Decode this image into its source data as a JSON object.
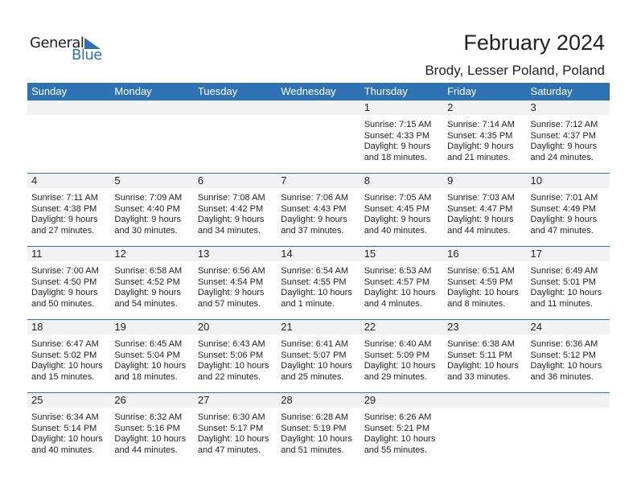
{
  "logo": {
    "text_general": "General",
    "text_blue": "Blue"
  },
  "header": {
    "title": "February 2024",
    "subtitle": "Brody, Lesser Poland, Poland"
  },
  "colors": {
    "accent": "#2e72b3",
    "band": "#f2f2f2"
  },
  "weekdays": [
    "Sunday",
    "Monday",
    "Tuesday",
    "Wednesday",
    "Thursday",
    "Friday",
    "Saturday"
  ],
  "weeks": [
    [
      null,
      null,
      null,
      null,
      {
        "day": "1",
        "sunrise": "Sunrise: 7:15 AM",
        "sunset": "Sunset: 4:33 PM",
        "daylight1": "Daylight: 9 hours",
        "daylight2": "and 18 minutes."
      },
      {
        "day": "2",
        "sunrise": "Sunrise: 7:14 AM",
        "sunset": "Sunset: 4:35 PM",
        "daylight1": "Daylight: 9 hours",
        "daylight2": "and 21 minutes."
      },
      {
        "day": "3",
        "sunrise": "Sunrise: 7:12 AM",
        "sunset": "Sunset: 4:37 PM",
        "daylight1": "Daylight: 9 hours",
        "daylight2": "and 24 minutes."
      }
    ],
    [
      {
        "day": "4",
        "sunrise": "Sunrise: 7:11 AM",
        "sunset": "Sunset: 4:38 PM",
        "daylight1": "Daylight: 9 hours",
        "daylight2": "and 27 minutes."
      },
      {
        "day": "5",
        "sunrise": "Sunrise: 7:09 AM",
        "sunset": "Sunset: 4:40 PM",
        "daylight1": "Daylight: 9 hours",
        "daylight2": "and 30 minutes."
      },
      {
        "day": "6",
        "sunrise": "Sunrise: 7:08 AM",
        "sunset": "Sunset: 4:42 PM",
        "daylight1": "Daylight: 9 hours",
        "daylight2": "and 34 minutes."
      },
      {
        "day": "7",
        "sunrise": "Sunrise: 7:06 AM",
        "sunset": "Sunset: 4:43 PM",
        "daylight1": "Daylight: 9 hours",
        "daylight2": "and 37 minutes."
      },
      {
        "day": "8",
        "sunrise": "Sunrise: 7:05 AM",
        "sunset": "Sunset: 4:45 PM",
        "daylight1": "Daylight: 9 hours",
        "daylight2": "and 40 minutes."
      },
      {
        "day": "9",
        "sunrise": "Sunrise: 7:03 AM",
        "sunset": "Sunset: 4:47 PM",
        "daylight1": "Daylight: 9 hours",
        "daylight2": "and 44 minutes."
      },
      {
        "day": "10",
        "sunrise": "Sunrise: 7:01 AM",
        "sunset": "Sunset: 4:49 PM",
        "daylight1": "Daylight: 9 hours",
        "daylight2": "and 47 minutes."
      }
    ],
    [
      {
        "day": "11",
        "sunrise": "Sunrise: 7:00 AM",
        "sunset": "Sunset: 4:50 PM",
        "daylight1": "Daylight: 9 hours",
        "daylight2": "and 50 minutes."
      },
      {
        "day": "12",
        "sunrise": "Sunrise: 6:58 AM",
        "sunset": "Sunset: 4:52 PM",
        "daylight1": "Daylight: 9 hours",
        "daylight2": "and 54 minutes."
      },
      {
        "day": "13",
        "sunrise": "Sunrise: 6:56 AM",
        "sunset": "Sunset: 4:54 PM",
        "daylight1": "Daylight: 9 hours",
        "daylight2": "and 57 minutes."
      },
      {
        "day": "14",
        "sunrise": "Sunrise: 6:54 AM",
        "sunset": "Sunset: 4:55 PM",
        "daylight1": "Daylight: 10 hours",
        "daylight2": "and 1 minute."
      },
      {
        "day": "15",
        "sunrise": "Sunrise: 6:53 AM",
        "sunset": "Sunset: 4:57 PM",
        "daylight1": "Daylight: 10 hours",
        "daylight2": "and 4 minutes."
      },
      {
        "day": "16",
        "sunrise": "Sunrise: 6:51 AM",
        "sunset": "Sunset: 4:59 PM",
        "daylight1": "Daylight: 10 hours",
        "daylight2": "and 8 minutes."
      },
      {
        "day": "17",
        "sunrise": "Sunrise: 6:49 AM",
        "sunset": "Sunset: 5:01 PM",
        "daylight1": "Daylight: 10 hours",
        "daylight2": "and 11 minutes."
      }
    ],
    [
      {
        "day": "18",
        "sunrise": "Sunrise: 6:47 AM",
        "sunset": "Sunset: 5:02 PM",
        "daylight1": "Daylight: 10 hours",
        "daylight2": "and 15 minutes."
      },
      {
        "day": "19",
        "sunrise": "Sunrise: 6:45 AM",
        "sunset": "Sunset: 5:04 PM",
        "daylight1": "Daylight: 10 hours",
        "daylight2": "and 18 minutes."
      },
      {
        "day": "20",
        "sunrise": "Sunrise: 6:43 AM",
        "sunset": "Sunset: 5:06 PM",
        "daylight1": "Daylight: 10 hours",
        "daylight2": "and 22 minutes."
      },
      {
        "day": "21",
        "sunrise": "Sunrise: 6:41 AM",
        "sunset": "Sunset: 5:07 PM",
        "daylight1": "Daylight: 10 hours",
        "daylight2": "and 25 minutes."
      },
      {
        "day": "22",
        "sunrise": "Sunrise: 6:40 AM",
        "sunset": "Sunset: 5:09 PM",
        "daylight1": "Daylight: 10 hours",
        "daylight2": "and 29 minutes."
      },
      {
        "day": "23",
        "sunrise": "Sunrise: 6:38 AM",
        "sunset": "Sunset: 5:11 PM",
        "daylight1": "Daylight: 10 hours",
        "daylight2": "and 33 minutes."
      },
      {
        "day": "24",
        "sunrise": "Sunrise: 6:36 AM",
        "sunset": "Sunset: 5:12 PM",
        "daylight1": "Daylight: 10 hours",
        "daylight2": "and 36 minutes."
      }
    ],
    [
      {
        "day": "25",
        "sunrise": "Sunrise: 6:34 AM",
        "sunset": "Sunset: 5:14 PM",
        "daylight1": "Daylight: 10 hours",
        "daylight2": "and 40 minutes."
      },
      {
        "day": "26",
        "sunrise": "Sunrise: 6:32 AM",
        "sunset": "Sunset: 5:16 PM",
        "daylight1": "Daylight: 10 hours",
        "daylight2": "and 44 minutes."
      },
      {
        "day": "27",
        "sunrise": "Sunrise: 6:30 AM",
        "sunset": "Sunset: 5:17 PM",
        "daylight1": "Daylight: 10 hours",
        "daylight2": "and 47 minutes."
      },
      {
        "day": "28",
        "sunrise": "Sunrise: 6:28 AM",
        "sunset": "Sunset: 5:19 PM",
        "daylight1": "Daylight: 10 hours",
        "daylight2": "and 51 minutes."
      },
      {
        "day": "29",
        "sunrise": "Sunrise: 6:26 AM",
        "sunset": "Sunset: 5:21 PM",
        "daylight1": "Daylight: 10 hours",
        "daylight2": "and 55 minutes."
      },
      null,
      null
    ]
  ]
}
